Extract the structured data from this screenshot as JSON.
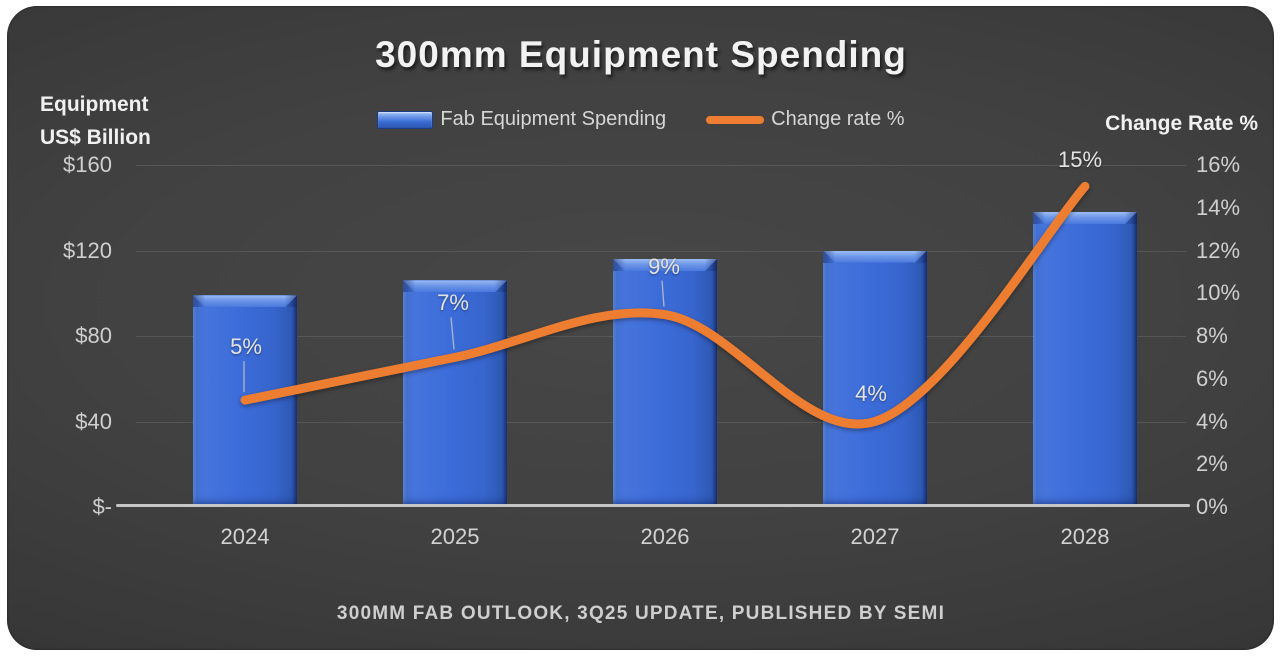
{
  "title": "300mm Equipment Spending",
  "legend": {
    "items": [
      {
        "label": "Fab Equipment Spending",
        "swatch": "bar-swatch",
        "color": "#3A6CD4"
      },
      {
        "label": "Change rate %",
        "swatch": "line-swatch",
        "color": "#ED7D31"
      }
    ]
  },
  "axes": {
    "left": {
      "title_line1": "Equipment",
      "title_line2": "US$ Billion",
      "ticks": [
        "$160",
        "$120",
        "$80",
        "$40",
        "$-"
      ]
    },
    "right": {
      "title": "Change Rate %",
      "ticks": [
        "16%",
        "14%",
        "12%",
        "10%",
        "8%",
        "6%",
        "4%",
        "2%",
        "0%"
      ]
    },
    "x": {
      "categories": [
        "2024",
        "2025",
        "2026",
        "2027",
        "2028"
      ]
    }
  },
  "footer": "300MM FAB OUTLOOK, 3Q25 UPDATE, PUBLISHED BY SEMI",
  "colors": {
    "bar": "#3A6CD4",
    "bar_bevel_light": "#9DBDF3",
    "bar_edge_dark": "#254A9D",
    "line": "#ED7D31",
    "title_text": "#F2F2F2",
    "tick_text": "#CFCFCF",
    "gridline": "#5D5D5D",
    "axis_line": "#C6C6C6",
    "background_center": "#474747",
    "background_edge": "#232323",
    "leader_line": "#C4C4C4"
  },
  "chart_data": {
    "type": "combo",
    "categories": [
      "2024",
      "2025",
      "2026",
      "2027",
      "2028"
    ],
    "series": [
      {
        "name": "Fab Equipment Spending",
        "type": "bar",
        "axis": "left",
        "values": [
          99,
          106,
          116,
          120,
          138
        ]
      },
      {
        "name": "Change rate %",
        "type": "line",
        "axis": "right",
        "values": [
          5,
          7,
          9,
          4,
          15
        ],
        "labels": [
          "5%",
          "7%",
          "9%",
          "4%",
          "15%"
        ],
        "smooth": true
      }
    ],
    "left_axis": {
      "label": "Equipment US$ Billion",
      "range": [
        0,
        160
      ],
      "tick_step": 40,
      "tick_format": "$"
    },
    "right_axis": {
      "label": "Change Rate %",
      "range": [
        0,
        16
      ],
      "tick_step": 2,
      "tick_format": "%"
    },
    "grid": "horizontal",
    "legend_position": "top",
    "source": "300MM FAB OUTLOOK, 3Q25 UPDATE, PUBLISHED BY SEMI"
  }
}
